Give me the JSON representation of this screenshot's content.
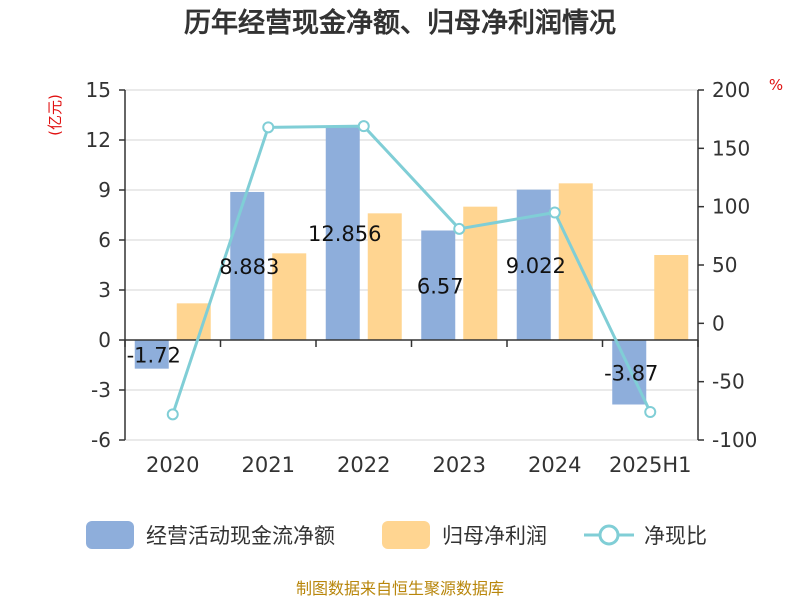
{
  "title": "历年经营现金净额、归母净利润情况",
  "source": "制图数据来自恒生聚源数据库",
  "colors": {
    "cash": "#8eaedb",
    "profit": "#ffd591",
    "ratio": "#80ced6",
    "unit": "#e01010",
    "source": "#b8860b"
  },
  "chart_data": {
    "type": "bar",
    "categories": [
      "2020",
      "2021",
      "2022",
      "2023",
      "2024",
      "2025H1"
    ],
    "left_axis": {
      "unit": "(亿元)",
      "range": [
        -6,
        15
      ],
      "ticks": [
        15,
        12,
        9,
        6,
        3,
        0,
        -3,
        -6
      ]
    },
    "right_axis": {
      "unit": "%",
      "range": [
        -100,
        200
      ],
      "ticks": [
        200,
        150,
        100,
        50,
        0,
        -50,
        -100
      ]
    },
    "series": [
      {
        "name": "经营活动现金流净额",
        "type": "bar",
        "axis": "left",
        "values": [
          -1.72,
          8.883,
          12.856,
          6.57,
          9.022,
          -3.87
        ],
        "labels": [
          "-1.72",
          "8.883",
          "12.856",
          "6.57",
          "9.022",
          "-3.87"
        ]
      },
      {
        "name": "归母净利润",
        "type": "bar",
        "axis": "left",
        "values": [
          2.2,
          5.2,
          7.6,
          8.0,
          9.4,
          5.1
        ]
      },
      {
        "name": "净现比",
        "type": "line",
        "axis": "right",
        "values": [
          -78,
          168,
          169,
          81,
          95,
          -76
        ]
      }
    ],
    "grid": true,
    "legend_position": "bottom"
  }
}
